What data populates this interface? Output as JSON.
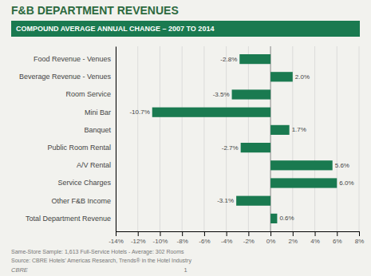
{
  "chart_data": {
    "type": "bar",
    "orientation": "horizontal",
    "title": "F&B DEPARTMENT REVENUES",
    "subtitle": "COMPOUND AVERAGE ANNUAL CHANGE – 2007 TO 2014",
    "categories": [
      "Total Department Revenue",
      "Other F&B Income",
      "Service Charges",
      "A/V Rental",
      "Public Room Rental",
      "Banquet",
      "Mini Bar",
      "Room Service",
      "Beverage Revenue - Venues",
      "Food Revenue - Venues"
    ],
    "values": [
      0.6,
      -3.1,
      6.0,
      5.6,
      -2.7,
      1.7,
      -10.7,
      -3.5,
      2.0,
      -2.8
    ],
    "value_labels": [
      "0.6%",
      "-3.1%",
      "6.0%",
      "5.6%",
      "-2.7%",
      "1.7%",
      "-10.7%",
      "-3.5%",
      "2.0%",
      "-2.8%"
    ],
    "data_labels": true,
    "color": "#1a7a50",
    "xlim": [
      -14,
      8
    ],
    "xticks": [
      {
        "value": -14,
        "label": "-14%"
      },
      {
        "value": -12,
        "label": "-12%"
      },
      {
        "value": -10,
        "label": "-10%"
      },
      {
        "value": -8,
        "label": "-8%"
      },
      {
        "value": -6,
        "label": "-6%"
      },
      {
        "value": -4,
        "label": "-4%"
      },
      {
        "value": -2,
        "label": "-2%"
      },
      {
        "value": 0,
        "label": "0%"
      },
      {
        "value": 2,
        "label": "2%"
      },
      {
        "value": 4,
        "label": "4%"
      },
      {
        "value": 6,
        "label": "6%"
      },
      {
        "value": 8,
        "label": "8%"
      }
    ],
    "grid": true,
    "annotations": [
      "Same-Store Sample: 1,613 Full-Service Hotels - Average: 302 Rooms",
      "Source: CBRE Hotels’ Americas Research, Trends® in the Hotel Industry",
      "CBRE",
      "1"
    ]
  }
}
